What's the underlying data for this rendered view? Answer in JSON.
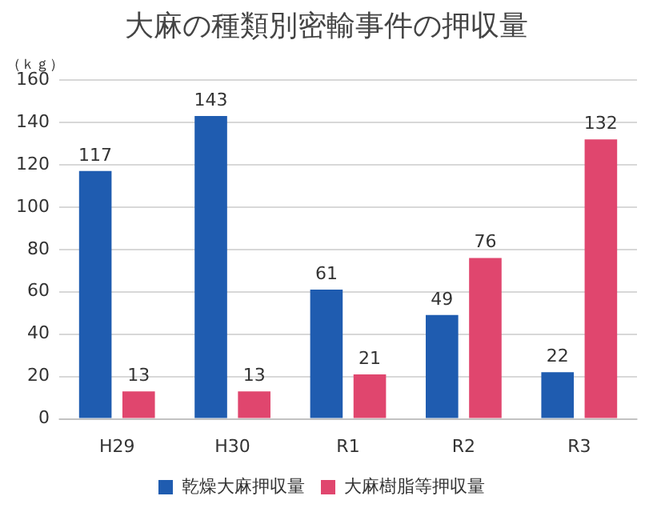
{
  "chart_data": {
    "type": "bar",
    "title": "大麻の種類別密輸事件の押収量",
    "ylabel": "（ｋｇ）",
    "categories": [
      "H29",
      "H30",
      "R1",
      "R2",
      "R3"
    ],
    "series": [
      {
        "name": "乾燥大麻押収量",
        "color": "#1f5cb0",
        "values": [
          117,
          143,
          61,
          49,
          22
        ]
      },
      {
        "name": "大麻樹脂等押収量",
        "color": "#e0466e",
        "values": [
          13,
          13,
          21,
          76,
          132
        ]
      }
    ],
    "ylim": [
      0,
      160
    ],
    "yticks": [
      0,
      20,
      40,
      60,
      80,
      100,
      120,
      140,
      160
    ],
    "grid": "y",
    "legend": "bottom",
    "data_labels": true
  }
}
